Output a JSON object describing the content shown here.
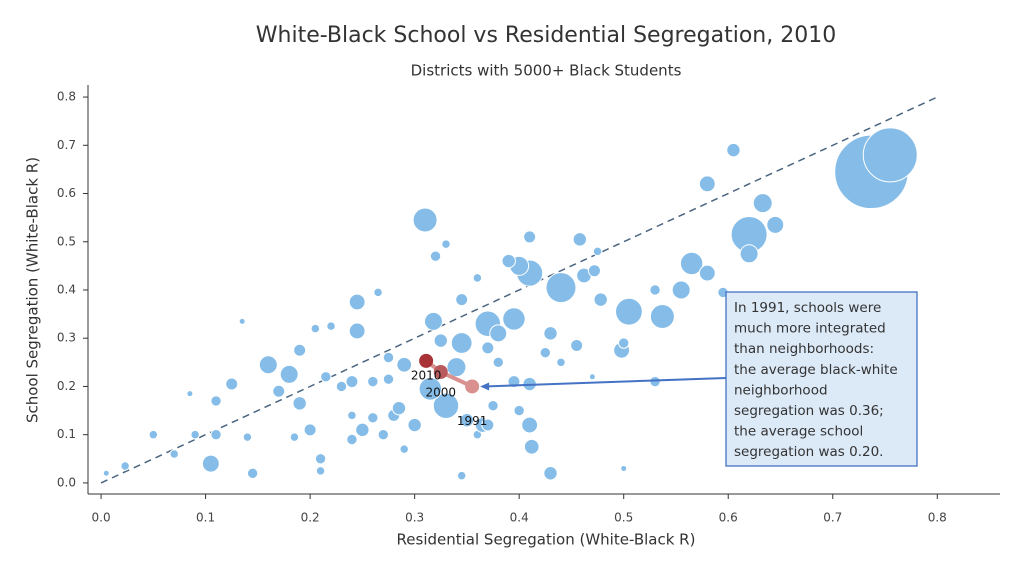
{
  "chart_data": {
    "type": "scatter",
    "title": "White-Black School vs Residential Segregation, 2010",
    "subtitle": "Districts with 5000+ Black Students",
    "x_label": "Residential Segregation (White-Black R)",
    "y_label": "School Segregation (White-Black R)",
    "xlim": [
      -0.0125,
      0.86
    ],
    "ylim": [
      -0.023,
      0.825
    ],
    "xticks": [
      {
        "value": 0,
        "label": "0.0"
      },
      0.1,
      0.2,
      0.3,
      0.4,
      0.5,
      0.6,
      0.7,
      0.8
    ],
    "yticks": [
      {
        "value": 0,
        "label": "0.0"
      },
      0.1,
      0.2,
      0.3,
      0.4,
      0.5,
      0.6,
      0.7,
      0.8
    ],
    "reference_line": {
      "x": [
        0,
        0.8
      ],
      "y": [
        0,
        0.8
      ],
      "color": "#4a6580"
    },
    "bubbles": {
      "color": "#85bde8",
      "x": [
        0.737,
        0.755,
        0.605,
        0.58,
        0.633,
        0.62,
        0.645,
        0.62,
        0.565,
        0.555,
        0.58,
        0.595,
        0.505,
        0.537,
        0.53,
        0.498,
        0.5,
        0.53,
        0.44,
        0.458,
        0.462,
        0.472,
        0.475,
        0.478,
        0.455,
        0.41,
        0.4,
        0.41,
        0.39,
        0.395,
        0.37,
        0.38,
        0.345,
        0.34,
        0.33,
        0.315,
        0.29,
        0.31,
        0.32,
        0.33,
        0.318,
        0.325,
        0.345,
        0.36,
        0.395,
        0.41,
        0.4,
        0.41,
        0.412,
        0.43,
        0.5,
        0.47,
        0.245,
        0.245,
        0.265,
        0.22,
        0.205,
        0.16,
        0.18,
        0.17,
        0.125,
        0.11,
        0.135,
        0.085,
        0.105,
        0.11,
        0.14,
        0.145,
        0.05,
        0.07,
        0.09,
        0.023,
        0.005,
        0.25,
        0.24,
        0.2,
        0.21,
        0.27,
        0.28,
        0.29,
        0.3,
        0.35,
        0.36,
        0.365,
        0.345,
        0.23,
        0.24,
        0.26,
        0.275,
        0.285,
        0.19,
        0.19,
        0.215,
        0.275,
        0.38,
        0.37,
        0.26,
        0.43,
        0.425,
        0.44,
        0.375,
        0.37,
        0.21,
        0.24,
        0.185
      ],
      "y": [
        0.645,
        0.68,
        0.69,
        0.62,
        0.58,
        0.515,
        0.535,
        0.475,
        0.455,
        0.4,
        0.435,
        0.395,
        0.355,
        0.345,
        0.4,
        0.275,
        0.29,
        0.21,
        0.405,
        0.505,
        0.43,
        0.44,
        0.48,
        0.38,
        0.285,
        0.435,
        0.45,
        0.51,
        0.46,
        0.34,
        0.33,
        0.31,
        0.29,
        0.24,
        0.16,
        0.195,
        0.245,
        0.545,
        0.47,
        0.495,
        0.335,
        0.295,
        0.38,
        0.425,
        0.21,
        0.205,
        0.15,
        0.12,
        0.075,
        0.02,
        0.03,
        0.22,
        0.375,
        0.315,
        0.395,
        0.325,
        0.32,
        0.245,
        0.225,
        0.19,
        0.205,
        0.17,
        0.335,
        0.185,
        0.04,
        0.1,
        0.095,
        0.02,
        0.1,
        0.06,
        0.1,
        0.035,
        0.02,
        0.11,
        0.09,
        0.11,
        0.05,
        0.1,
        0.14,
        0.07,
        0.12,
        0.13,
        0.1,
        0.12,
        0.015,
        0.2,
        0.21,
        0.21,
        0.215,
        0.155,
        0.165,
        0.275,
        0.22,
        0.26,
        0.25,
        0.28,
        0.135,
        0.31,
        0.27,
        0.25,
        0.16,
        0.12,
        0.025,
        0.14,
        0.095
      ],
      "sizes": [
        150,
        81,
        5,
        7,
        10,
        36,
        8,
        9,
        14,
        9,
        7,
        3,
        20,
        16,
        3,
        7,
        3,
        3,
        25,
        5,
        6,
        4,
        2,
        5,
        4,
        19,
        10,
        4,
        5,
        14,
        18,
        8,
        12,
        10,
        18,
        14,
        6,
        16,
        3,
        2,
        9,
        5,
        4,
        2,
        4,
        5,
        3,
        7,
        6,
        5,
        1,
        1,
        7,
        7,
        2,
        2,
        2,
        9,
        9,
        4,
        4,
        3,
        1,
        1,
        8,
        3,
        2,
        3,
        2,
        2,
        2,
        2,
        1,
        5,
        3,
        4,
        3,
        3,
        4,
        2,
        5,
        5,
        2,
        6,
        2,
        3,
        4,
        3,
        3,
        5,
        5,
        4,
        3,
        3,
        3,
        4,
        3,
        5,
        3,
        2,
        3,
        4,
        2,
        2,
        2
      ]
    },
    "trend": {
      "line_color": "#d9908f",
      "labels": [
        "1991",
        "2000",
        "2010"
      ],
      "x": [
        0.355,
        0.325,
        0.311
      ],
      "y": [
        0.2,
        0.23,
        0.253
      ],
      "colors": [
        "#d9908f",
        "#b85a5e",
        "#a83236"
      ]
    },
    "annotation": {
      "lines": [
        "In 1991, schools were",
        "much more integrated",
        "than neighborhoods:",
        "the average black-white",
        "neighborhood",
        "segregation was 0.36;",
        "the average school",
        "segregation was 0.20."
      ],
      "color": "#4472c4"
    }
  }
}
